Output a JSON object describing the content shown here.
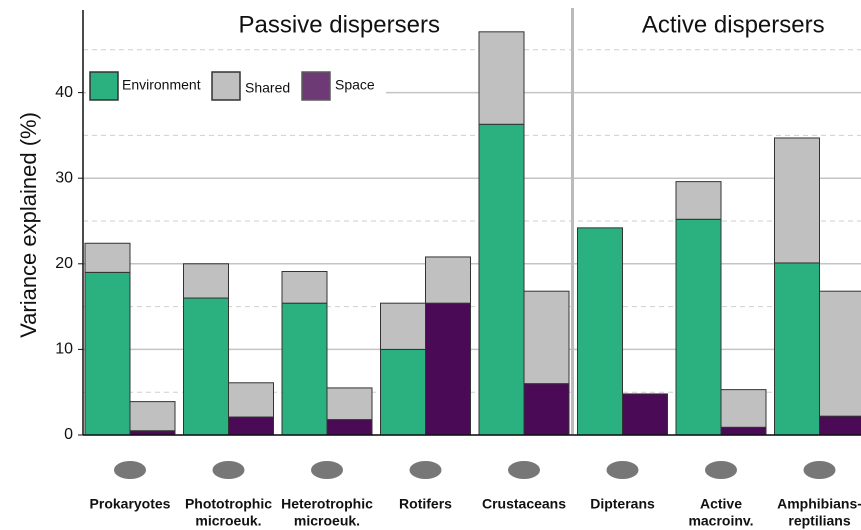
{
  "chart_data": {
    "type": "paired-stacked-bar",
    "y_label": "Variance explained (%)",
    "categories": [
      [
        "Prokaryotes"
      ],
      [
        "Phototrophic",
        "microeuk."
      ],
      [
        "Heterotrophic",
        "microeuk."
      ],
      [
        "Rotifers"
      ],
      [
        "Crustaceans"
      ],
      [
        "Dipterans"
      ],
      [
        "Active",
        "macroinv."
      ],
      [
        "Amphibians-",
        "reptilians"
      ]
    ],
    "groups": [
      {
        "label": "Passive dispersers",
        "span": 5
      },
      {
        "label": "Active dispersers",
        "span": 3
      }
    ],
    "series": [
      {
        "name": "Environment",
        "color": "#2bb07f",
        "values": [
          19,
          16,
          15.4,
          10,
          36.3,
          24.2,
          25.2,
          20.1
        ]
      },
      {
        "name": "Shared",
        "color": "#c0c0c0",
        "values": [
          3.4,
          4,
          3.7,
          5.4,
          10.8,
          0,
          4.4,
          14.6
        ]
      },
      {
        "name": "Space",
        "color": "#4a0a55",
        "values": [
          0.5,
          2.1,
          1.8,
          15.4,
          6,
          4.8,
          0.9,
          2.2
        ]
      }
    ],
    "ylim": [
      0,
      50
    ],
    "yticks": [
      0,
      10,
      20,
      30,
      40
    ],
    "minor_yticks": [
      5,
      15,
      25,
      35,
      45
    ],
    "grid": true,
    "legend": "upper left"
  }
}
